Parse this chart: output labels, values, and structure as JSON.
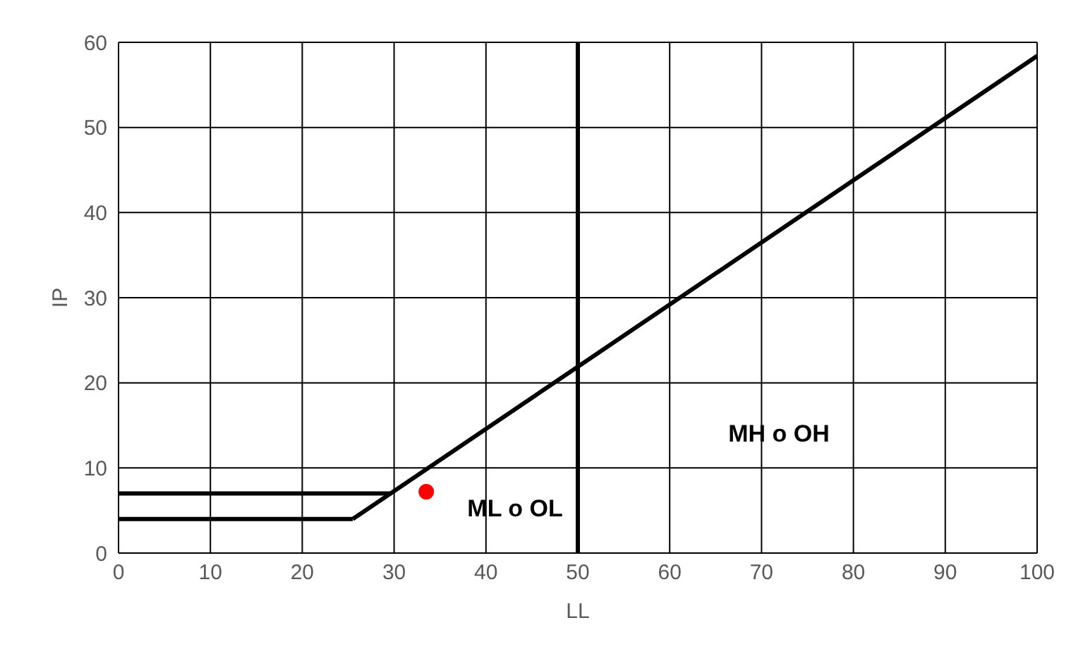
{
  "chart_data": {
    "type": "line",
    "xlabel": "LL",
    "ylabel": "IP",
    "xlim": [
      0,
      100
    ],
    "ylim": [
      0,
      60
    ],
    "xticks": [
      0,
      10,
      20,
      30,
      40,
      50,
      60,
      70,
      80,
      90,
      100
    ],
    "yticks": [
      0,
      10,
      20,
      30,
      40,
      50,
      60
    ],
    "grid": true,
    "series": [
      {
        "type": "line",
        "color": "#000000",
        "x": [
          25.5,
          100
        ],
        "values": [
          4,
          58.4
        ]
      },
      {
        "type": "line",
        "color": "#000000",
        "x": [
          0,
          25.5
        ],
        "values": [
          4,
          4
        ]
      },
      {
        "type": "line",
        "color": "#000000",
        "x": [
          0,
          29.7
        ],
        "values": [
          7,
          7
        ]
      },
      {
        "type": "scatter",
        "color": "#ff0000",
        "marker": "circle",
        "x": [
          33.5
        ],
        "values": [
          7.2
        ]
      }
    ],
    "ref_lines": [
      {
        "axis": "x",
        "value": 50,
        "color": "#000000"
      }
    ],
    "annotations": [
      "ML o OL",
      "MH o OH"
    ]
  }
}
